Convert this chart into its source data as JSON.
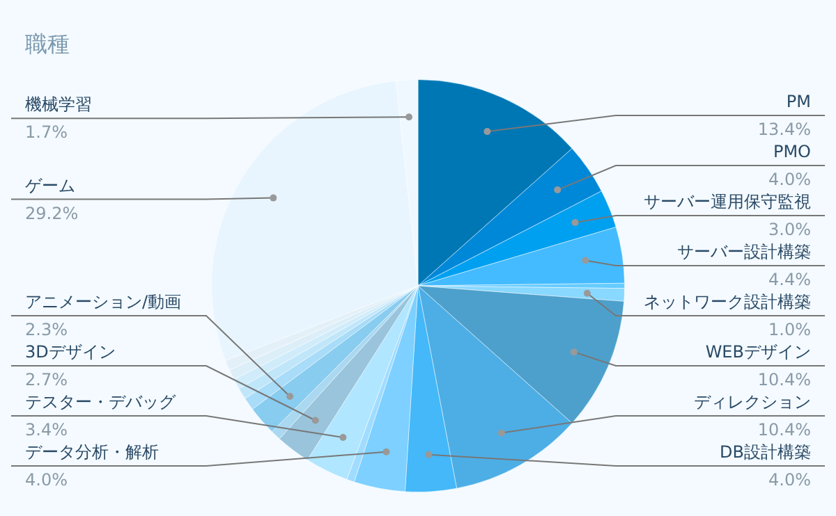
{
  "chart_data": {
    "type": "pie",
    "title": "職種",
    "categories": [
      "PM",
      "PMO",
      "サーバー運用保守監視",
      "サーバー設計構築",
      null,
      "ネットワーク設計構築",
      "WEBデザイン",
      "ディレクション",
      "DB設計構築",
      "データ分析・解析",
      null,
      "テスター・デバッグ",
      "3Dデザイン",
      null,
      "アニメーション/動画",
      null,
      null,
      null,
      null,
      null,
      "ゲーム",
      "機械学習"
    ],
    "values": [
      13.4,
      4.0,
      3.0,
      4.4,
      0.4,
      1.0,
      10.4,
      10.4,
      4.0,
      4.0,
      0.6,
      3.4,
      2.7,
      0.8,
      2.3,
      1.0,
      0.9,
      0.8,
      0.8,
      0.8,
      29.2,
      1.7
    ],
    "colors": [
      "#0077b5",
      "#0088d8",
      "#00a0f0",
      "#44bbff",
      "#66ccff",
      "#88d8ff",
      "#4da0cc",
      "#4daee6",
      "#44b8f8",
      "#7dd0ff",
      "#a0dcff",
      "#b0e6ff",
      "#99c4dc",
      "#aad8f0",
      "#88ccf0",
      "#a8dcf8",
      "#c0e6fa",
      "#d0ecfa",
      "#dceef8",
      "#e4f0f8",
      "#e8f5fe",
      "#f0f8ff"
    ],
    "value_labels": [
      "13.4%",
      "4.0%",
      "3.0%",
      "4.4%",
      null,
      "1.0%",
      "10.4%",
      "10.4%",
      "4.0%",
      "4.0%",
      null,
      "3.4%",
      "2.7%",
      null,
      "2.3%",
      null,
      null,
      null,
      null,
      null,
      "29.2%",
      "1.7%"
    ]
  }
}
